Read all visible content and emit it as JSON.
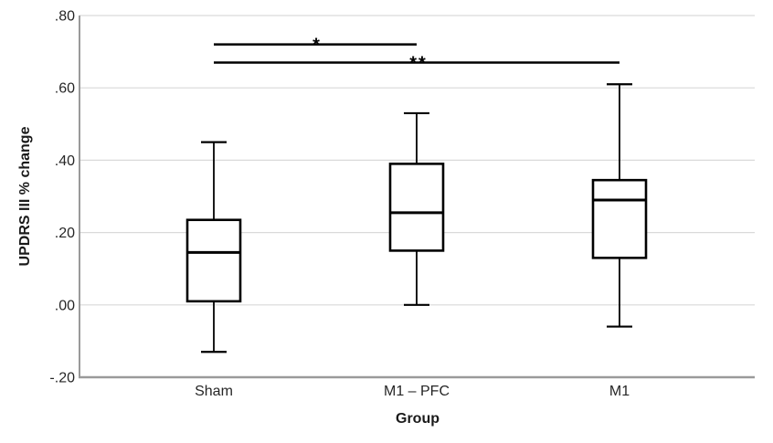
{
  "figure": {
    "background": "#ffffff"
  },
  "chart_data": {
    "type": "boxplot",
    "title": "",
    "xlabel": "Group",
    "ylabel": "UPDRS III % change",
    "categories": [
      "Sham",
      "M1 – PFC",
      "M1"
    ],
    "ylim": [
      -0.2,
      0.8
    ],
    "grid": "horizontal",
    "legend": "none",
    "y_ticks": [
      {
        "value": 0.8,
        "label": ".80"
      },
      {
        "value": 0.6,
        "label": ".60"
      },
      {
        "value": 0.4,
        "label": ".40"
      },
      {
        "value": 0.2,
        "label": ".20"
      },
      {
        "value": 0.0,
        "label": ".00"
      },
      {
        "value": -0.2,
        "label": "-.20"
      }
    ],
    "series": [
      {
        "group": "Sham",
        "whisker_low": -0.13,
        "q1": 0.01,
        "median": 0.145,
        "q3": 0.235,
        "whisker_high": 0.45
      },
      {
        "group": "M1 – PFC",
        "whisker_low": 0.0,
        "q1": 0.15,
        "median": 0.255,
        "q3": 0.39,
        "whisker_high": 0.53
      },
      {
        "group": "M1",
        "whisker_low": -0.06,
        "q1": 0.13,
        "median": 0.29,
        "q3": 0.345,
        "whisker_high": 0.61
      }
    ],
    "significance_bars": [
      {
        "from": "Sham",
        "to": "M1 – PFC",
        "label": "*",
        "y_value": 0.72
      },
      {
        "from": "Sham",
        "to": "M1",
        "label": "**",
        "y_value": 0.67
      }
    ],
    "colors": {
      "box_stroke": "#000000",
      "box_fill": "#ffffff",
      "median": "#000000",
      "whisker": "#000000",
      "gridline": "#d9d9d9",
      "axis": "#9a9a9a",
      "text": "#262626",
      "sig_bar": "#000000"
    }
  }
}
